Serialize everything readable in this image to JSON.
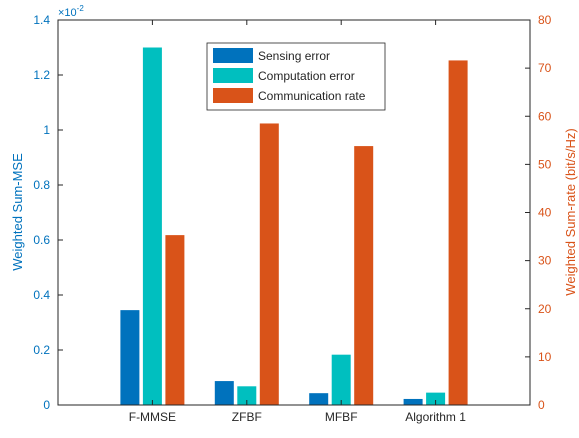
{
  "chart_data": {
    "type": "bar",
    "categories": [
      "F-MMSE",
      "ZFBF",
      "MFBF",
      "Algorithm 1"
    ],
    "y_left": {
      "label": "Weighted Sum-MSE",
      "range": [
        0,
        1.4
      ],
      "ticks": [
        0,
        0.2,
        0.4,
        0.6,
        0.8,
        1,
        1.2,
        1.4
      ],
      "tick_labels": [
        "0",
        "0.2",
        "0.4",
        "0.6",
        "0.8",
        "1",
        "1.2",
        "1.4"
      ],
      "exponent": "×10",
      "exponent_power": "-2",
      "color": "#0072BD"
    },
    "y_right": {
      "label": "Weighted Sum-rate (bit/s/Hz)",
      "range": [
        0,
        80
      ],
      "ticks": [
        0,
        10,
        20,
        30,
        40,
        50,
        60,
        70,
        80
      ],
      "tick_labels": [
        "0",
        "10",
        "20",
        "30",
        "40",
        "50",
        "60",
        "70",
        "80"
      ],
      "color": "#D95319"
    },
    "series": [
      {
        "name": "Sensing error",
        "axis": "left",
        "color": "#0072BD",
        "values": [
          0.345,
          0.087,
          0.043,
          0.022
        ]
      },
      {
        "name": "Computation error",
        "axis": "left",
        "color": "#00BFBF",
        "values": [
          1.3,
          0.068,
          0.183,
          0.045
        ]
      },
      {
        "name": "Communication rate",
        "axis": "right",
        "color": "#D95319",
        "values": [
          35.3,
          58.5,
          53.8,
          71.6
        ]
      }
    ],
    "legend_position": "top-center",
    "grid": false
  }
}
